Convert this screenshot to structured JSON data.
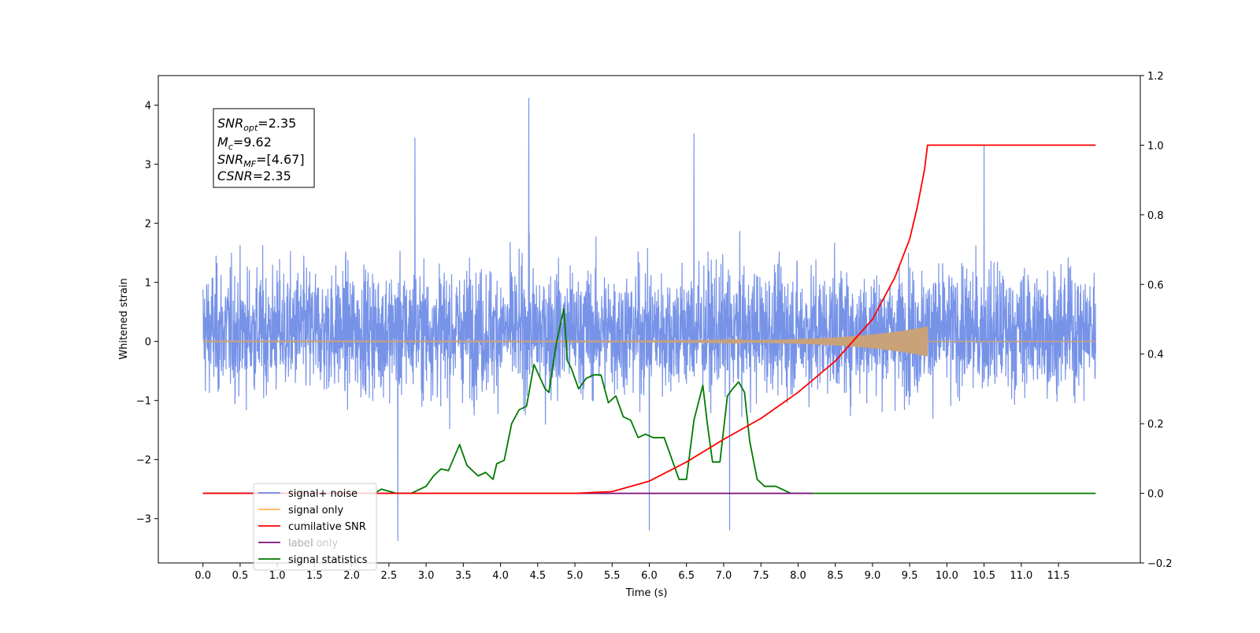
{
  "chart_data": {
    "type": "line",
    "xlabel": "Time (s)",
    "ylabel": "Whitened strain",
    "xlim": [
      -0.6,
      12.6
    ],
    "ylim": [
      -3.75,
      4.5
    ],
    "y2lim": [
      -0.2,
      1.2
    ],
    "grid": false,
    "legend_placement": "lower-left",
    "x_ticks": [
      "0.0",
      "0.5",
      "1.0",
      "1.5",
      "2.0",
      "2.5",
      "3.0",
      "3.5",
      "4.0",
      "4.5",
      "5.0",
      "5.5",
      "6.0",
      "6.5",
      "7.0",
      "7.5",
      "8.0",
      "8.5",
      "9.0",
      "9.5",
      "10.0",
      "10.5",
      "11.0",
      "11.5"
    ],
    "y_ticks": [
      "4",
      "3",
      "2",
      "1",
      "0",
      "−1",
      "−2",
      "−3"
    ],
    "y2_ticks": [
      "1.2",
      "1.0",
      "0.8",
      "0.6",
      "0.4",
      "0.2",
      "0.0",
      "−0.2"
    ],
    "annotation": {
      "snr_opt": {
        "main": "SNR",
        "sub": "opt",
        "value": "=2.35"
      },
      "mc": {
        "main": "M",
        "sub": "c",
        "value": "=9.62"
      },
      "snr_mf": {
        "main": "SNR",
        "sub": "MF",
        "value": "=[4.67]"
      },
      "csnr": {
        "main": "CSNR",
        "value": "=2.35"
      }
    },
    "series": [
      {
        "name": "signal+ noise",
        "color": "#6b8ae6",
        "axis": "left",
        "description_values": "noise time series",
        "x_range": [
          0.0,
          12.0
        ],
        "typical_envelope": [
          -1.6,
          2.0
        ],
        "peaks": [
          [
            4.38,
            4.12
          ],
          [
            2.85,
            3.45
          ],
          [
            6.6,
            3.52
          ],
          [
            10.5,
            3.32
          ],
          [
            2.62,
            -3.38
          ],
          [
            6.0,
            -3.2
          ],
          [
            7.08,
            -3.2
          ]
        ]
      },
      {
        "name": "signal only",
        "color": "#ffb74d",
        "axis": "left",
        "chirp": {
          "start": 0.0,
          "end": 9.74,
          "peak_amplitude": 0.25
        }
      },
      {
        "name": "cumilative SNR",
        "color": "#ff0000",
        "axis": "right",
        "x": [
          0.0,
          5.0,
          5.5,
          6.0,
          6.5,
          7.0,
          7.5,
          8.0,
          8.5,
          9.0,
          9.3,
          9.5,
          9.6,
          9.7,
          9.74,
          11.5,
          12.0
        ],
        "y": [
          0.0,
          0.0,
          0.005,
          0.035,
          0.09,
          0.155,
          0.215,
          0.29,
          0.38,
          0.5,
          0.62,
          0.73,
          0.82,
          0.93,
          1.0,
          1.0,
          1.0
        ]
      },
      {
        "name": "label",
        "color": "#7b0f7b",
        "axis": "right",
        "x": [
          0.0,
          8.2
        ],
        "y": [
          0.0,
          0.0
        ]
      },
      {
        "name": "label only",
        "color": "#c0c0c0",
        "axis": "right",
        "visible_line": false
      },
      {
        "name": "signal statistics",
        "color": "#007a00",
        "axis": "right",
        "x": [
          0.0,
          2.3,
          2.4,
          2.6,
          2.8,
          3.0,
          3.1,
          3.2,
          3.3,
          3.45,
          3.55,
          3.7,
          3.8,
          3.9,
          3.95,
          4.05,
          4.15,
          4.25,
          4.35,
          4.45,
          4.6,
          4.65,
          4.75,
          4.85,
          4.9,
          4.95,
          5.05,
          5.15,
          5.25,
          5.35,
          5.45,
          5.55,
          5.65,
          5.75,
          5.85,
          5.95,
          6.05,
          6.2,
          6.4,
          6.5,
          6.6,
          6.72,
          6.78,
          6.85,
          6.95,
          7.05,
          7.12,
          7.2,
          7.28,
          7.35,
          7.45,
          7.55,
          7.7,
          7.9,
          8.2,
          12.0
        ],
        "y": [
          0.0,
          0.0,
          0.012,
          0.0,
          0.0,
          0.02,
          0.05,
          0.07,
          0.065,
          0.14,
          0.08,
          0.05,
          0.06,
          0.04,
          0.085,
          0.095,
          0.2,
          0.24,
          0.25,
          0.37,
          0.3,
          0.29,
          0.43,
          0.53,
          0.38,
          0.36,
          0.3,
          0.33,
          0.34,
          0.34,
          0.26,
          0.28,
          0.22,
          0.21,
          0.16,
          0.17,
          0.16,
          0.16,
          0.04,
          0.04,
          0.21,
          0.31,
          0.2,
          0.09,
          0.09,
          0.28,
          0.3,
          0.32,
          0.29,
          0.15,
          0.04,
          0.02,
          0.02,
          0.0,
          0.0,
          0.0
        ]
      }
    ]
  }
}
